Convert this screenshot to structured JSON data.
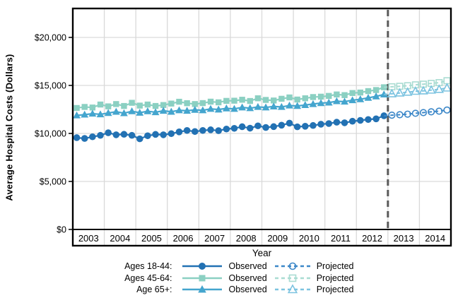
{
  "chart_data": {
    "type": "line",
    "title": "",
    "xlabel": "Year",
    "ylabel": "Average Hospital Costs (Dollars)",
    "x_frequency": "quarterly",
    "years": [
      2003,
      2004,
      2005,
      2006,
      2007,
      2008,
      2009,
      2010,
      2011,
      2012,
      2013,
      2014
    ],
    "ylim": [
      0,
      22500
    ],
    "yticks": {
      "values": [
        0,
        5000,
        10000,
        15000,
        20000
      ],
      "labels": [
        "$0",
        "$5,000",
        "$10,000",
        "$15,000",
        "$20,000"
      ]
    },
    "grid": true,
    "reference_line": {
      "at_year_boundary": 2013,
      "meaning": "start of projection",
      "color": "#595959",
      "style": "dashed"
    },
    "series": [
      {
        "name": "Ages 45-64",
        "marker": "square",
        "color_observed": "#8bd0c2",
        "color_projected": "#a9dcd2",
        "observed": [
          12650,
          12760,
          12700,
          13010,
          12820,
          13060,
          12860,
          13190,
          12900,
          13010,
          12860,
          12960,
          13110,
          13300,
          13150,
          13060,
          13160,
          13310,
          13240,
          13390,
          13410,
          13510,
          13380,
          13660,
          13490,
          13430,
          13610,
          13750,
          13530,
          13660,
          13790,
          13830,
          13910,
          14060,
          13990,
          14210,
          14260,
          14410,
          14520,
          14810
        ],
        "projected": [
          14860,
          14910,
          14970,
          15060,
          15130,
          15210,
          15290,
          15490
        ]
      },
      {
        "name": "Age 65+",
        "marker": "triangle",
        "color_observed": "#44a5ce",
        "color_projected": "#7cc3e0",
        "observed": [
          11880,
          11960,
          12060,
          11990,
          12130,
          12260,
          12110,
          12310,
          12160,
          12310,
          12210,
          12360,
          12260,
          12410,
          12360,
          12460,
          12410,
          12560,
          12490,
          12610,
          12560,
          12710,
          12630,
          12760,
          12710,
          12810,
          12760,
          12910,
          12860,
          12960,
          13060,
          13160,
          13210,
          13360,
          13310,
          13460,
          13560,
          13710,
          13860,
          14060
        ],
        "projected": [
          14130,
          14210,
          14290,
          14390,
          14430,
          14510,
          14590,
          14730
        ]
      },
      {
        "name": "Ages 18-44",
        "marker": "circle",
        "color_observed": "#2271b3",
        "color_projected": "#3c87c8",
        "observed": [
          9560,
          9480,
          9650,
          9800,
          10070,
          9860,
          9910,
          9800,
          9440,
          9760,
          9900,
          9860,
          9980,
          10160,
          10310,
          10200,
          10310,
          10380,
          10290,
          10460,
          10530,
          10700,
          10550,
          10790,
          10620,
          10710,
          10860,
          11070,
          10690,
          10750,
          10830,
          10960,
          11030,
          11170,
          11110,
          11270,
          11360,
          11450,
          11520,
          11840
        ],
        "projected": [
          11900,
          11950,
          12010,
          12100,
          12170,
          12250,
          12320,
          12440
        ]
      }
    ]
  },
  "legend": {
    "rows": [
      {
        "label": "Ages 18-44:",
        "observed_label": "Observed",
        "projected_label": "Projected",
        "series": "Ages 18-44"
      },
      {
        "label": "Ages 45-64:",
        "observed_label": "Observed",
        "projected_label": "Projected",
        "series": "Ages 45-64"
      },
      {
        "label": "Age 65+:",
        "observed_label": "Observed",
        "projected_label": "Projected",
        "series": "Age 65+"
      }
    ]
  },
  "colors": {
    "grid": "#d9d9d9",
    "frame": "#000000",
    "reference_line": "#595959",
    "background": "#ffffff"
  }
}
